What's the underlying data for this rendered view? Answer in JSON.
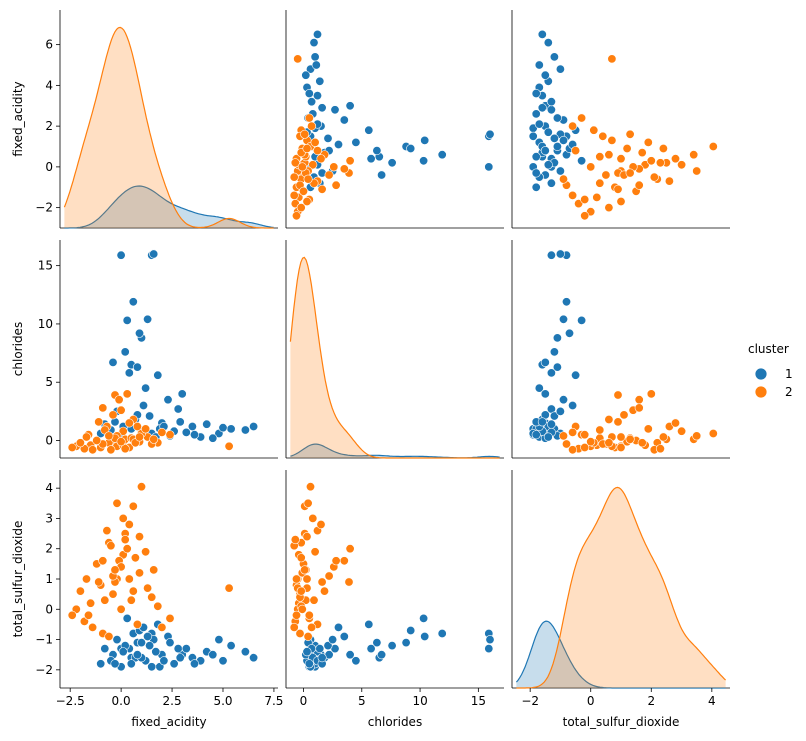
{
  "chart_data": {
    "type": "pairplot",
    "variables": [
      "fixed_acidity",
      "chlorides",
      "total_sulfur_dioxide"
    ],
    "axis_labels": [
      "fixed_acidity",
      "chlorides",
      "total_sulfur_dioxide"
    ],
    "x_ticks": [
      [
        "−2.5",
        "0.0",
        "2.5",
        "5.0",
        "7.5"
      ],
      [
        "0",
        "5",
        "10",
        "15"
      ],
      [
        "−2",
        "0",
        "2",
        "4"
      ]
    ],
    "y_ticks": [
      [
        "−2",
        "0",
        "2",
        "4",
        "6"
      ],
      [
        "0",
        "5",
        "10",
        "15"
      ],
      [
        "−2",
        "−1",
        "0",
        "1",
        "2",
        "3",
        "4"
      ]
    ],
    "x_tick_values": [
      [
        -2.5,
        0.0,
        2.5,
        5.0,
        7.5
      ],
      [
        0,
        5,
        10,
        15
      ],
      [
        -2,
        0,
        2,
        4
      ]
    ],
    "y_tick_values": [
      [
        -2,
        0,
        2,
        4,
        6
      ],
      [
        0,
        5,
        10,
        15
      ],
      [
        -2,
        -1,
        0,
        1,
        2,
        3,
        4
      ]
    ],
    "ranges": [
      [
        -3.0,
        7.7
      ],
      [
        -1.5,
        17.2
      ],
      [
        -2.6,
        4.6
      ]
    ],
    "legend": {
      "title": "cluster",
      "placement": "right",
      "entries": [
        {
          "label": "1",
          "color": "#1f77b4"
        },
        {
          "label": "2",
          "color": "#ff7f0e"
        }
      ]
    },
    "series": [
      {
        "name": "1",
        "color": "#1f77b4",
        "kde_peaks": [
          1.35,
          1.1,
          1.35
        ],
        "points": [
          [
            0.5,
            6.5,
            -1.6
          ],
          [
            0.8,
            6.3,
            -1.1
          ],
          [
            0.4,
            5.8,
            -1.3
          ],
          [
            1.2,
            4.5,
            -1.7
          ],
          [
            2.3,
            3.5,
            -0.9
          ],
          [
            3.0,
            4.0,
            -1.5
          ],
          [
            0.3,
            10.3,
            -0.3
          ],
          [
            0.6,
            11.9,
            -0.8
          ],
          [
            0.0,
            15.9,
            -1.3
          ],
          [
            1.5,
            15.9,
            -0.8
          ],
          [
            1.6,
            16.0,
            -1.0
          ],
          [
            1.3,
            10.4,
            -0.9
          ],
          [
            1.0,
            8.8,
            -1.1
          ],
          [
            0.2,
            7.6,
            -1.2
          ],
          [
            -0.4,
            6.7,
            -1.5
          ],
          [
            0.9,
            9.2,
            -0.7
          ],
          [
            1.8,
            5.6,
            -0.5
          ],
          [
            2.8,
            2.7,
            -1.3
          ],
          [
            3.5,
            1.2,
            -1.6
          ],
          [
            4.2,
            1.4,
            -1.4
          ],
          [
            5.4,
            1.0,
            -1.2
          ],
          [
            6.5,
            1.2,
            -1.6
          ],
          [
            6.1,
            0.9,
            -1.4
          ],
          [
            4.8,
            0.6,
            -1.0
          ],
          [
            3.9,
            0.3,
            -1.7
          ],
          [
            2.6,
            0.8,
            -1.8
          ],
          [
            2.0,
            1.5,
            -1.5
          ],
          [
            1.4,
            2.1,
            -1.2
          ],
          [
            0.7,
            1.8,
            -1.6
          ],
          [
            0.1,
            1.2,
            -1.4
          ],
          [
            -0.5,
            0.9,
            -1.7
          ],
          [
            -1.0,
            0.6,
            -1.8
          ],
          [
            -0.8,
            1.4,
            -1.3
          ],
          [
            -0.2,
            2.5,
            -1.0
          ],
          [
            1.1,
            3.0,
            -0.6
          ],
          [
            1.9,
            1.0,
            -1.9
          ],
          [
            2.4,
            0.4,
            -1.1
          ],
          [
            3.2,
            0.7,
            -1.3
          ],
          [
            4.5,
            0.2,
            -1.5
          ],
          [
            5.0,
            1.1,
            -1.7
          ],
          [
            0.0,
            0.5,
            -1.9
          ],
          [
            0.5,
            1.0,
            -1.8
          ],
          [
            1.0,
            0.8,
            -1.6
          ],
          [
            1.5,
            0.6,
            -1.9
          ],
          [
            2.1,
            1.2,
            -1.7
          ],
          [
            -0.3,
            1.6,
            -1.8
          ],
          [
            0.8,
            2.2,
            -1.5
          ],
          [
            1.7,
            0.3,
            -1.4
          ],
          [
            2.9,
            1.6,
            -1.6
          ],
          [
            3.6,
            0.5,
            -1.8
          ]
        ]
      },
      {
        "name": "2",
        "color": "#ff7f0e",
        "kde_peaks": [
          6.45,
          15.9,
          4.05
        ],
        "points": [
          [
            -0.4,
            -0.3,
            0.5
          ],
          [
            -0.2,
            -0.5,
            1.0
          ],
          [
            0.1,
            -0.4,
            1.8
          ],
          [
            -0.6,
            -0.2,
            2.2
          ],
          [
            0.2,
            0.1,
            2.5
          ],
          [
            -1.0,
            -0.6,
            0.8
          ],
          [
            -1.5,
            -0.4,
            0.2
          ],
          [
            -2.2,
            -0.5,
            0.0
          ],
          [
            -1.8,
            -0.7,
            -0.4
          ],
          [
            -0.9,
            -0.3,
            -0.8
          ],
          [
            0.5,
            0.2,
            0.3
          ],
          [
            0.9,
            -0.1,
            1.2
          ],
          [
            1.3,
            0.3,
            0.7
          ],
          [
            1.8,
            -0.2,
            0.1
          ],
          [
            2.4,
            0.5,
            -0.3
          ],
          [
            -0.3,
            3.9,
            0.9
          ],
          [
            -0.1,
            3.5,
            1.6
          ],
          [
            0.3,
            4.0,
            2.0
          ],
          [
            0.0,
            2.6,
            1.4
          ],
          [
            0.6,
            1.8,
            0.6
          ],
          [
            -0.7,
            1.2,
            2.6
          ],
          [
            0.1,
            0.8,
            3.0
          ],
          [
            0.6,
            0.1,
            3.4
          ],
          [
            -0.2,
            0.4,
            3.5
          ],
          [
            1.0,
            0.6,
            4.05
          ],
          [
            5.3,
            -0.5,
            0.7
          ],
          [
            -1.2,
            0.0,
            1.5
          ],
          [
            -0.5,
            -0.8,
            2.1
          ],
          [
            0.4,
            -0.6,
            1.0
          ],
          [
            1.5,
            -0.3,
            0.4
          ],
          [
            -2.0,
            -0.2,
            0.6
          ],
          [
            -1.6,
            0.5,
            -0.2
          ],
          [
            -0.8,
            0.9,
            0.3
          ],
          [
            0.8,
            1.2,
            -0.5
          ],
          [
            2.0,
            0.7,
            -0.6
          ],
          [
            -0.4,
            2.2,
            1.1
          ],
          [
            -1.1,
            1.6,
            0.9
          ],
          [
            0.2,
            -0.7,
            2.3
          ],
          [
            0.7,
            -0.2,
            1.7
          ],
          [
            -0.3,
            0.2,
            1.3
          ],
          [
            -1.4,
            -0.8,
            -0.6
          ],
          [
            -2.4,
            -0.6,
            -0.2
          ],
          [
            1.2,
            1.0,
            1.9
          ],
          [
            0.0,
            -0.1,
            0.0
          ],
          [
            -0.6,
            0.4,
            -0.9
          ],
          [
            0.9,
            0.3,
            2.4
          ],
          [
            -0.9,
            2.8,
            1.6
          ],
          [
            0.4,
            1.5,
            2.8
          ],
          [
            1.6,
            0.1,
            1.3
          ],
          [
            -1.7,
            0.3,
            1.0
          ]
        ]
      }
    ]
  }
}
